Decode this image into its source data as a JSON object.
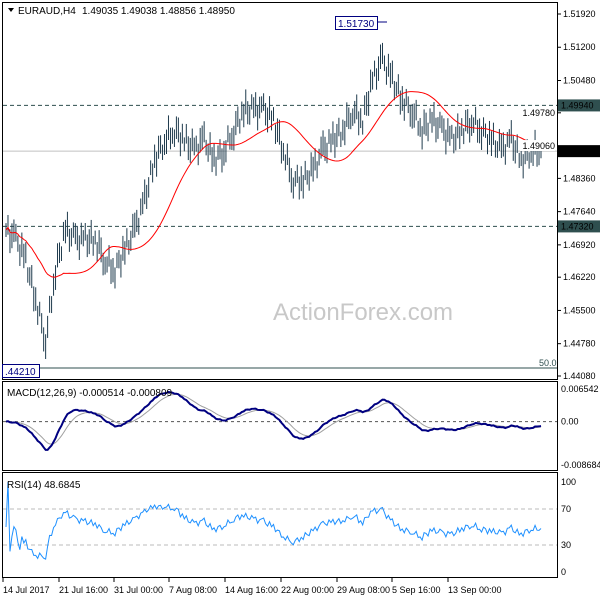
{
  "header": {
    "symbol": "EURAUD,H4",
    "ohlc": "1.49035 1.49038 1.48856 1.48950"
  },
  "watermark": "ActionForex.com",
  "colors": {
    "bars": "#1f3b4d",
    "ma": "#ff0000",
    "macd": "#000080",
    "signal": "#a0a0a0",
    "rsi": "#1e90ff",
    "level_box": "#2f4f4f",
    "price_box": "#000000"
  },
  "markers": {
    "high_label": "1.51730",
    "low_label": ".44210",
    "fib_label": "50.0"
  },
  "levels": [
    {
      "price": 1.4994,
      "label": "1.49940"
    },
    {
      "price": 1.4732,
      "label": "1.47320"
    }
  ],
  "current_price": {
    "price": 1.4895,
    "label": "1.48950"
  },
  "price_axis": [
    "1.51920",
    "1.51200",
    "1.50480",
    "1.49780",
    "1.49060",
    "1.48360",
    "1.47640",
    "1.46920",
    "1.46220",
    "1.45500",
    "1.44780",
    "1.44080"
  ],
  "macd": {
    "label": "MACD(12,26,9) -0.000514 -0.000809",
    "axis": [
      "0.006542",
      "0.00",
      "-0.008684"
    ]
  },
  "rsi": {
    "label": "RSI(14) 48.6845",
    "axis": [
      "100",
      "70",
      "30",
      "0"
    ]
  },
  "time_axis": [
    "14 Jul 2017",
    "21 Jul 16:00",
    "31 Jul 00:00",
    "7 Aug 08:00",
    "14 Aug 16:00",
    "22 Aug 00:00",
    "29 Aug 08:00",
    "5 Sep 16:00",
    "13 Sep 00:00"
  ],
  "chart_data": {
    "type": "ohlc",
    "symbol": "EURAUD",
    "timeframe": "H4",
    "ylim": [
      1.4408,
      1.5192
    ],
    "approx_closes": [
      1.4724,
      1.4703,
      1.4659,
      1.4573,
      1.4486,
      1.4638,
      1.4724,
      1.4703,
      1.4703,
      1.4703,
      1.4659,
      1.4638,
      1.4681,
      1.4724,
      1.4789,
      1.4876,
      1.4919,
      1.4941,
      1.4919,
      1.4897,
      1.4919,
      1.4876,
      1.4897,
      1.4941,
      1.4984,
      1.4984,
      1.4984,
      1.4962,
      1.4897,
      1.4832,
      1.4832,
      1.4854,
      1.4897,
      1.4919,
      1.4941,
      1.4984,
      1.4962,
      1.5049,
      1.5092,
      1.5049,
      1.5006,
      1.4984,
      1.4941,
      1.4962,
      1.4941,
      1.4919,
      1.4941,
      1.4962,
      1.4941,
      1.4919,
      1.4897,
      1.4919,
      1.4876,
      1.4897,
      1.4895
    ],
    "high": 1.5173,
    "low": 1.4421
  }
}
